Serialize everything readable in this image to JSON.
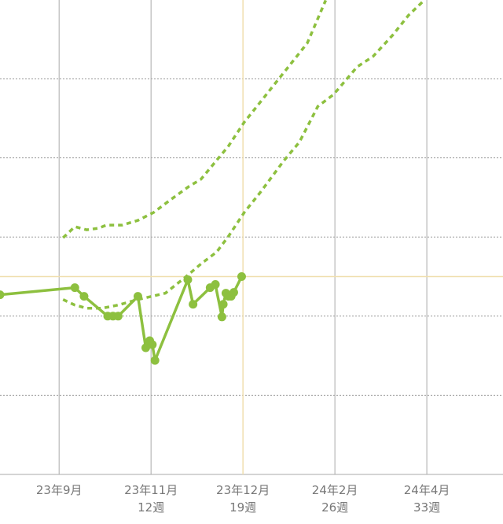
{
  "chart_data": {
    "type": "line",
    "title": "",
    "xlabel": "",
    "ylabel": "",
    "x_unit": "weeks",
    "xlim": [
      0.5,
      38.8
    ],
    "ylim": [
      0,
      6
    ],
    "grid": {
      "horizontal": "dotted",
      "vertical": "solid"
    },
    "x_ticks": [
      {
        "x": 5,
        "label": "23年9月",
        "sub": ""
      },
      {
        "x": 12,
        "label": "23年11月",
        "sub": "12週"
      },
      {
        "x": 19,
        "label": "23年12月",
        "sub": "19週"
      },
      {
        "x": 26,
        "label": "24年2月",
        "sub": "26週"
      },
      {
        "x": 33,
        "label": "24年4月",
        "sub": "33週"
      }
    ],
    "y_gridlines": [
      1,
      2,
      3,
      4,
      5
    ],
    "crosshair": {
      "x": 19,
      "y": 2.5
    },
    "series": [
      {
        "style": "solid-markers",
        "points": [
          [
            0.5,
            2.27
          ],
          [
            6.2,
            2.36
          ],
          [
            6.9,
            2.25
          ],
          [
            8.7,
            2.0
          ],
          [
            9.1,
            2.0
          ],
          [
            9.5,
            2.0
          ],
          [
            11.0,
            2.25
          ],
          [
            11.6,
            1.6
          ],
          [
            11.9,
            1.69
          ],
          [
            12.1,
            1.64
          ],
          [
            12.3,
            1.44
          ],
          [
            14.8,
            2.46
          ],
          [
            15.2,
            2.15
          ],
          [
            16.5,
            2.36
          ],
          [
            16.9,
            2.4
          ],
          [
            17.4,
            1.99
          ],
          [
            17.5,
            2.15
          ],
          [
            17.7,
            2.29
          ],
          [
            17.9,
            2.25
          ],
          [
            18.1,
            2.25
          ],
          [
            18.3,
            2.3
          ],
          [
            18.9,
            2.5
          ]
        ]
      },
      {
        "style": "dashed",
        "points": [
          [
            5.3,
            2.99
          ],
          [
            6.2,
            3.13
          ],
          [
            7.1,
            3.09
          ],
          [
            8.0,
            3.11
          ],
          [
            8.6,
            3.15
          ],
          [
            9.8,
            3.15
          ],
          [
            11.0,
            3.21
          ],
          [
            12.2,
            3.31
          ],
          [
            13.4,
            3.46
          ],
          [
            14.9,
            3.64
          ],
          [
            15.8,
            3.73
          ],
          [
            16.7,
            3.91
          ],
          [
            17.9,
            4.15
          ],
          [
            19.1,
            4.45
          ],
          [
            20.3,
            4.7
          ],
          [
            21.5,
            4.95
          ],
          [
            22.7,
            5.2
          ],
          [
            23.9,
            5.45
          ],
          [
            25.3,
            5.99
          ]
        ]
      },
      {
        "style": "dashed",
        "points": [
          [
            5.3,
            2.21
          ],
          [
            6.2,
            2.14
          ],
          [
            7.1,
            2.1
          ],
          [
            8.3,
            2.1
          ],
          [
            9.5,
            2.14
          ],
          [
            11.0,
            2.21
          ],
          [
            13.1,
            2.29
          ],
          [
            14.6,
            2.49
          ],
          [
            15.8,
            2.66
          ],
          [
            17.0,
            2.81
          ],
          [
            17.9,
            3.01
          ],
          [
            19.1,
            3.31
          ],
          [
            20.3,
            3.56
          ],
          [
            22.1,
            3.96
          ],
          [
            23.3,
            4.2
          ],
          [
            24.7,
            4.65
          ],
          [
            25.9,
            4.8
          ],
          [
            27.7,
            5.15
          ],
          [
            28.9,
            5.28
          ],
          [
            30.4,
            5.55
          ],
          [
            31.6,
            5.8
          ],
          [
            32.8,
            5.99
          ]
        ]
      }
    ],
    "colors": {
      "series": "#8dc03f",
      "crosshair": "#f0dfae",
      "grid": "#9a9a9a",
      "axis": "#aaaaaa",
      "tick_text": "#777777"
    }
  }
}
